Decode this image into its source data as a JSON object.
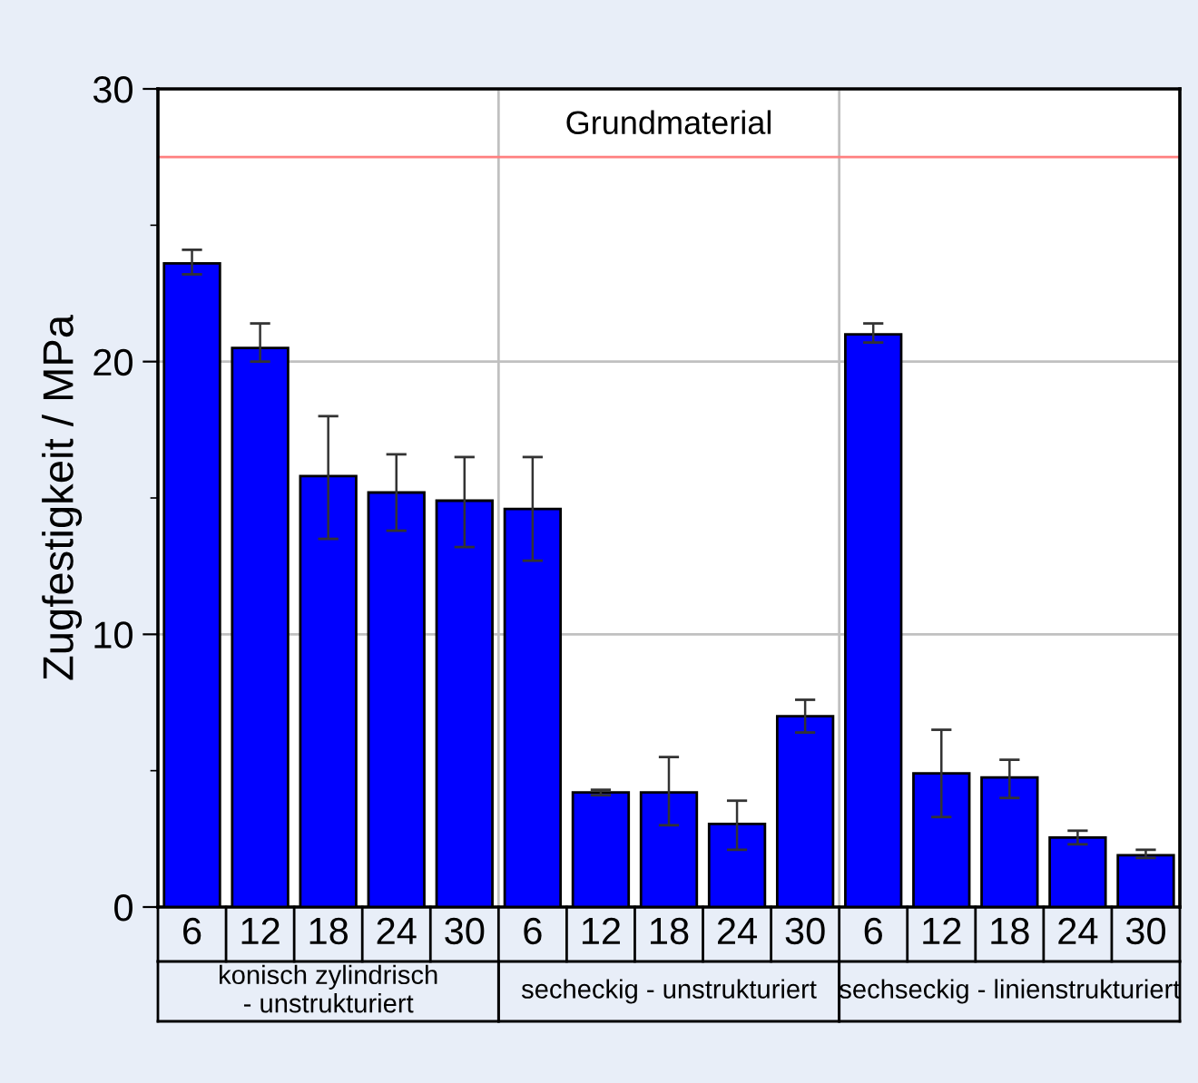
{
  "chart_data": {
    "type": "bar",
    "ylabel": "Zugfestigkeit / MPa",
    "categories": [
      "6",
      "12",
      "18",
      "24",
      "30",
      "6",
      "12",
      "18",
      "24",
      "30",
      "6",
      "12",
      "18",
      "24",
      "30"
    ],
    "values": [
      23.6,
      20.5,
      15.8,
      15.2,
      14.9,
      14.6,
      4.2,
      4.2,
      3.05,
      7.0,
      21.0,
      4.9,
      4.75,
      2.55,
      1.9
    ],
    "errors": [
      [
        23.2,
        24.1
      ],
      [
        20.0,
        21.4
      ],
      [
        13.5,
        18.0
      ],
      [
        13.8,
        16.6
      ],
      [
        13.2,
        16.5
      ],
      [
        12.7,
        16.5
      ],
      [
        4.1,
        4.3
      ],
      [
        3.0,
        5.5
      ],
      [
        2.1,
        3.9
      ],
      [
        6.4,
        7.6
      ],
      [
        20.7,
        21.4
      ],
      [
        3.3,
        6.5
      ],
      [
        4.0,
        5.4
      ],
      [
        2.3,
        2.8
      ],
      [
        1.8,
        2.1
      ]
    ],
    "color": "#0000ff",
    "ylim": [
      0,
      30
    ],
    "yticks": [
      0,
      {
        "value": 5,
        "label": null
      },
      10,
      {
        "value": 15,
        "label": null
      },
      20,
      {
        "value": 25,
        "label": null
      },
      30
    ],
    "grid": "y",
    "ref_lines": [
      {
        "axis": "y",
        "value": 27.5,
        "label": "Grundmaterial",
        "color": "#ff8080"
      }
    ],
    "annotations": [
      "konisch zylindrisch\n- unstrukturiert",
      "secheckig - unstrukturiert",
      "sechseckig - linienstrukturiert"
    ]
  }
}
